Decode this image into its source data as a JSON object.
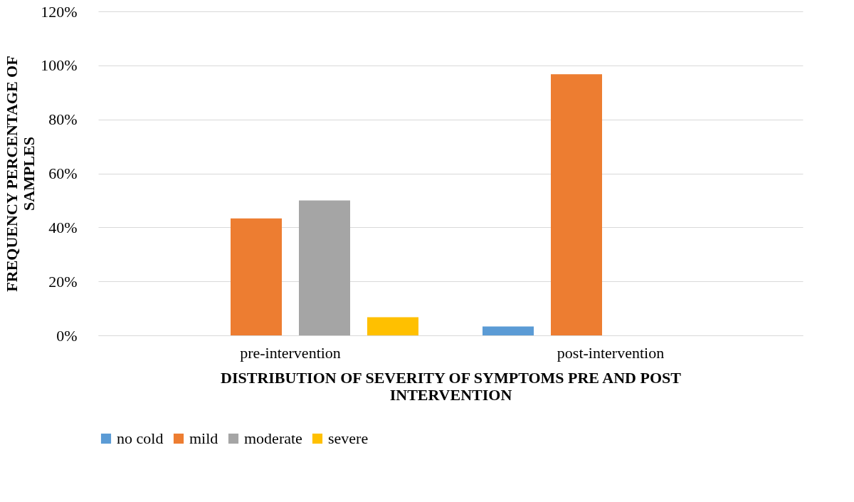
{
  "chart_data": {
    "type": "bar",
    "xlabel": "DISTRIBUTION OF SEVERITY OF SYMPTOMS PRE AND POST INTERVENTION",
    "ylabel": "FREQUENCY PERCENTAGE OF SAMPLES",
    "categories": [
      "pre-intervention",
      "post-intervention"
    ],
    "series": [
      {
        "name": "no cold",
        "color": "#5b9bd5",
        "values": [
          0,
          3.3
        ]
      },
      {
        "name": "mild",
        "color": "#ed7d31",
        "values": [
          43.3,
          96.7
        ]
      },
      {
        "name": "moderate",
        "color": "#a5a5a5",
        "values": [
          50,
          0
        ]
      },
      {
        "name": "severe",
        "color": "#ffc000",
        "values": [
          6.7,
          0
        ]
      }
    ],
    "ylim": [
      0,
      120
    ],
    "yticks": [
      {
        "value": 0,
        "label": "0%"
      },
      {
        "value": 20,
        "label": "20%"
      },
      {
        "value": 40,
        "label": "40%"
      },
      {
        "value": 60,
        "label": "60%"
      },
      {
        "value": 80,
        "label": "80%"
      },
      {
        "value": 100,
        "label": "100%"
      },
      {
        "value": 120,
        "label": "120%"
      }
    ],
    "grid": "y",
    "legend": "bottom"
  }
}
